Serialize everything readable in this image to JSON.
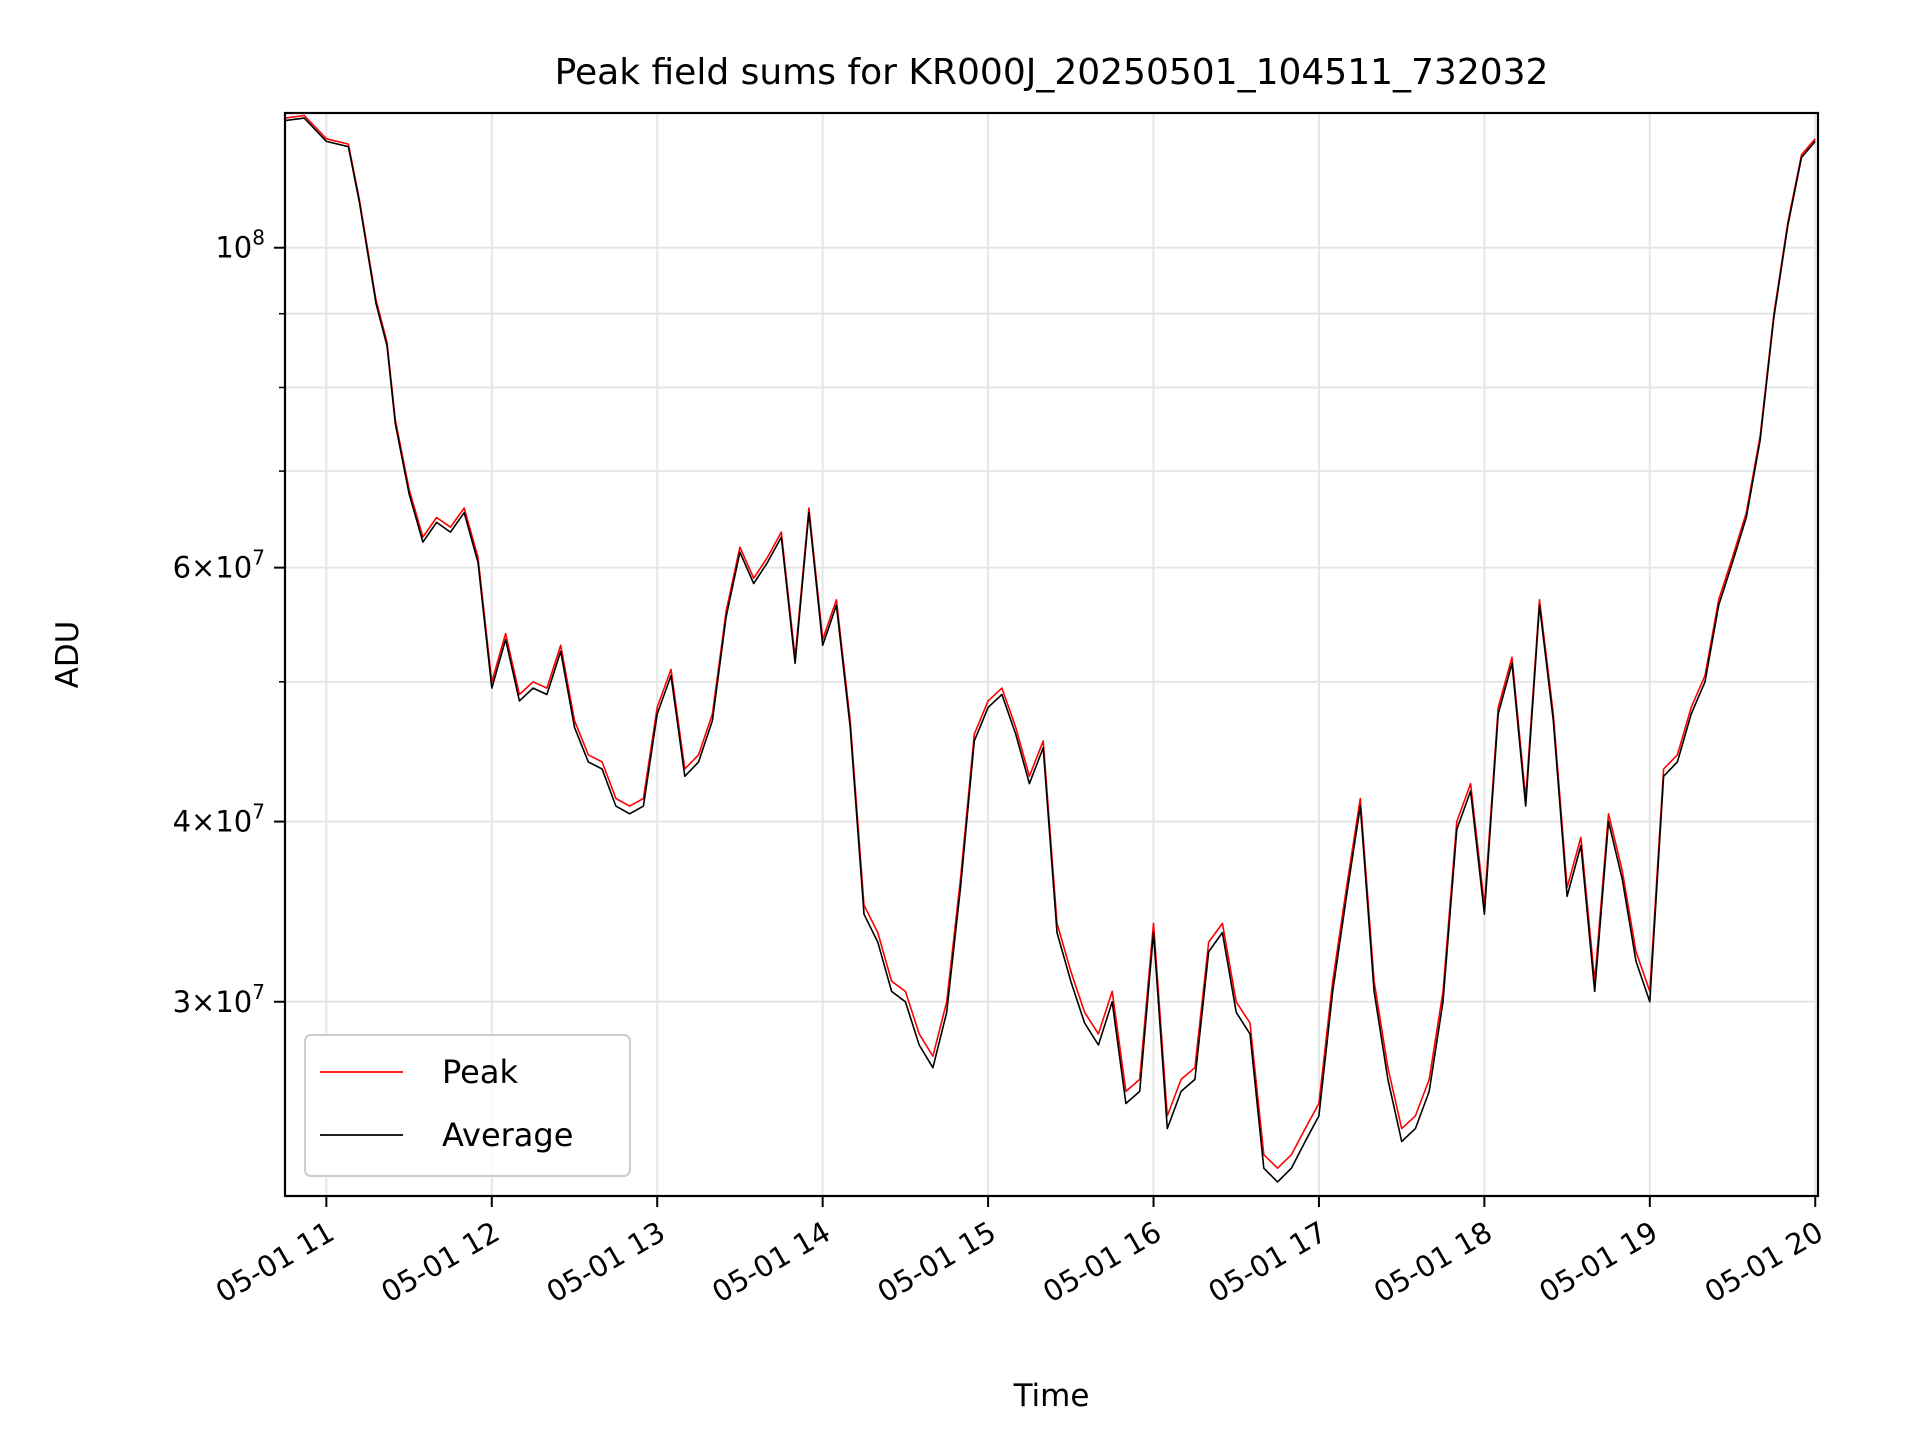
{
  "chart_data": {
    "type": "line",
    "title": "Peak field sums for KR000J_20250501_104511_732032",
    "xlabel": "Time",
    "ylabel": "ADU",
    "yscale": "log",
    "xlim": [
      "2025-05-01 10:45",
      "2025-05-01 20:01"
    ],
    "ylim": [
      22000000,
      124000000
    ],
    "grid": true,
    "legend_position": "lower-left",
    "x_ticks": [
      {
        "value": "2025-05-01 11:00",
        "label": "05-01 11"
      },
      {
        "value": "2025-05-01 12:00",
        "label": "05-01 12"
      },
      {
        "value": "2025-05-01 13:00",
        "label": "05-01 13"
      },
      {
        "value": "2025-05-01 14:00",
        "label": "05-01 14"
      },
      {
        "value": "2025-05-01 15:00",
        "label": "05-01 15"
      },
      {
        "value": "2025-05-01 16:00",
        "label": "05-01 16"
      },
      {
        "value": "2025-05-01 17:00",
        "label": "05-01 17"
      },
      {
        "value": "2025-05-01 18:00",
        "label": "05-01 18"
      },
      {
        "value": "2025-05-01 19:00",
        "label": "05-01 19"
      },
      {
        "value": "2025-05-01 20:00",
        "label": "05-01 20"
      }
    ],
    "y_ticks": [
      {
        "value": 30000000,
        "base": "3×10",
        "exp": "7"
      },
      {
        "value": 40000000,
        "base": "4×10",
        "exp": "7"
      },
      {
        "value": 60000000,
        "base": "6×10",
        "exp": "7"
      },
      {
        "value": 100000000,
        "base": "10",
        "exp": "8"
      }
    ],
    "y_minor_ticks": [
      50000000,
      70000000,
      80000000,
      90000000
    ],
    "series": [
      {
        "name": "Peak",
        "color": "#ff0000",
        "x": [
          "2025-05-01 10:45",
          "2025-05-01 10:52",
          "2025-05-01 11:00",
          "2025-05-01 11:08",
          "2025-05-01 11:12",
          "2025-05-01 11:18",
          "2025-05-01 11:22",
          "2025-05-01 11:25",
          "2025-05-01 11:30",
          "2025-05-01 11:35",
          "2025-05-01 11:40",
          "2025-05-01 11:45",
          "2025-05-01 11:50",
          "2025-05-01 11:55",
          "2025-05-01 12:00",
          "2025-05-01 12:05",
          "2025-05-01 12:10",
          "2025-05-01 12:15",
          "2025-05-01 12:20",
          "2025-05-01 12:25",
          "2025-05-01 12:30",
          "2025-05-01 12:35",
          "2025-05-01 12:40",
          "2025-05-01 12:45",
          "2025-05-01 12:50",
          "2025-05-01 12:55",
          "2025-05-01 13:00",
          "2025-05-01 13:05",
          "2025-05-01 13:10",
          "2025-05-01 13:15",
          "2025-05-01 13:20",
          "2025-05-01 13:25",
          "2025-05-01 13:30",
          "2025-05-01 13:35",
          "2025-05-01 13:40",
          "2025-05-01 13:45",
          "2025-05-01 13:50",
          "2025-05-01 13:55",
          "2025-05-01 14:00",
          "2025-05-01 14:05",
          "2025-05-01 14:10",
          "2025-05-01 14:15",
          "2025-05-01 14:20",
          "2025-05-01 14:25",
          "2025-05-01 14:30",
          "2025-05-01 14:35",
          "2025-05-01 14:40",
          "2025-05-01 14:45",
          "2025-05-01 14:50",
          "2025-05-01 14:55",
          "2025-05-01 15:00",
          "2025-05-01 15:05",
          "2025-05-01 15:10",
          "2025-05-01 15:15",
          "2025-05-01 15:20",
          "2025-05-01 15:25",
          "2025-05-01 15:30",
          "2025-05-01 15:35",
          "2025-05-01 15:40",
          "2025-05-01 15:45",
          "2025-05-01 15:50",
          "2025-05-01 15:55",
          "2025-05-01 16:00",
          "2025-05-01 16:05",
          "2025-05-01 16:10",
          "2025-05-01 16:15",
          "2025-05-01 16:20",
          "2025-05-01 16:25",
          "2025-05-01 16:30",
          "2025-05-01 16:35",
          "2025-05-01 16:40",
          "2025-05-01 16:45",
          "2025-05-01 16:50",
          "2025-05-01 16:55",
          "2025-05-01 17:00",
          "2025-05-01 17:05",
          "2025-05-01 17:10",
          "2025-05-01 17:15",
          "2025-05-01 17:20",
          "2025-05-01 17:25",
          "2025-05-01 17:30",
          "2025-05-01 17:35",
          "2025-05-01 17:40",
          "2025-05-01 17:45",
          "2025-05-01 17:50",
          "2025-05-01 17:55",
          "2025-05-01 18:00",
          "2025-05-01 18:05",
          "2025-05-01 18:10",
          "2025-05-01 18:15",
          "2025-05-01 18:20",
          "2025-05-01 18:25",
          "2025-05-01 18:30",
          "2025-05-01 18:35",
          "2025-05-01 18:40",
          "2025-05-01 18:45",
          "2025-05-01 18:50",
          "2025-05-01 18:55",
          "2025-05-01 19:00",
          "2025-05-01 19:05",
          "2025-05-01 19:10",
          "2025-05-01 19:15",
          "2025-05-01 19:20",
          "2025-05-01 19:25",
          "2025-05-01 19:30",
          "2025-05-01 19:35",
          "2025-05-01 19:40",
          "2025-05-01 19:45",
          "2025-05-01 19:50",
          "2025-05-01 19:55",
          "2025-05-01 20:00"
        ],
        "values": [
          123000000,
          123500000,
          119000000,
          118000000,
          108000000,
          92000000,
          86000000,
          76000000,
          68000000,
          63000000,
          65000000,
          64000000,
          66000000,
          61000000,
          50000000,
          54000000,
          49000000,
          50000000,
          49500000,
          53000000,
          47000000,
          44500000,
          44000000,
          41500000,
          41000000,
          41500000,
          48000000,
          51000000,
          43500000,
          44500000,
          47500000,
          56000000,
          62000000,
          59000000,
          61000000,
          63500000,
          52000000,
          66000000,
          53500000,
          57000000,
          47000000,
          35000000,
          33500000,
          31000000,
          30500000,
          28500000,
          27500000,
          30000000,
          36500000,
          46000000,
          48500000,
          49500000,
          46500000,
          43000000,
          45500000,
          34000000,
          31500000,
          29500000,
          28500000,
          30500000,
          26000000,
          26500000,
          34000000,
          25000000,
          26500000,
          27000000,
          33000000,
          34000000,
          30000000,
          29000000,
          23500000,
          23000000,
          23500000,
          24500000,
          25500000,
          31000000,
          36000000,
          41500000,
          31000000,
          27000000,
          24500000,
          25000000,
          26500000,
          30500000,
          40000000,
          42500000,
          35000000,
          48000000,
          52000000,
          41500000,
          57000000,
          47500000,
          36000000,
          39000000,
          31000000,
          40500000,
          37000000,
          32500000,
          30500000,
          43500000,
          44500000,
          48000000,
          50500000,
          57000000,
          61000000,
          65500000,
          74000000,
          90000000,
          104000000,
          116000000,
          119000000
        ]
      },
      {
        "name": "Average",
        "color": "#000000",
        "x": [
          "2025-05-01 10:45",
          "2025-05-01 10:52",
          "2025-05-01 11:00",
          "2025-05-01 11:08",
          "2025-05-01 11:12",
          "2025-05-01 11:18",
          "2025-05-01 11:22",
          "2025-05-01 11:25",
          "2025-05-01 11:30",
          "2025-05-01 11:35",
          "2025-05-01 11:40",
          "2025-05-01 11:45",
          "2025-05-01 11:50",
          "2025-05-01 11:55",
          "2025-05-01 12:00",
          "2025-05-01 12:05",
          "2025-05-01 12:10",
          "2025-05-01 12:15",
          "2025-05-01 12:20",
          "2025-05-01 12:25",
          "2025-05-01 12:30",
          "2025-05-01 12:35",
          "2025-05-01 12:40",
          "2025-05-01 12:45",
          "2025-05-01 12:50",
          "2025-05-01 12:55",
          "2025-05-01 13:00",
          "2025-05-01 13:05",
          "2025-05-01 13:10",
          "2025-05-01 13:15",
          "2025-05-01 13:20",
          "2025-05-01 13:25",
          "2025-05-01 13:30",
          "2025-05-01 13:35",
          "2025-05-01 13:40",
          "2025-05-01 13:45",
          "2025-05-01 13:50",
          "2025-05-01 13:55",
          "2025-05-01 14:00",
          "2025-05-01 14:05",
          "2025-05-01 14:10",
          "2025-05-01 14:15",
          "2025-05-01 14:20",
          "2025-05-01 14:25",
          "2025-05-01 14:30",
          "2025-05-01 14:35",
          "2025-05-01 14:40",
          "2025-05-01 14:45",
          "2025-05-01 14:50",
          "2025-05-01 14:55",
          "2025-05-01 15:00",
          "2025-05-01 15:05",
          "2025-05-01 15:10",
          "2025-05-01 15:15",
          "2025-05-01 15:20",
          "2025-05-01 15:25",
          "2025-05-01 15:30",
          "2025-05-01 15:35",
          "2025-05-01 15:40",
          "2025-05-01 15:45",
          "2025-05-01 15:50",
          "2025-05-01 15:55",
          "2025-05-01 16:00",
          "2025-05-01 16:05",
          "2025-05-01 16:10",
          "2025-05-01 16:15",
          "2025-05-01 16:20",
          "2025-05-01 16:25",
          "2025-05-01 16:30",
          "2025-05-01 16:35",
          "2025-05-01 16:40",
          "2025-05-01 16:45",
          "2025-05-01 16:50",
          "2025-05-01 16:55",
          "2025-05-01 17:00",
          "2025-05-01 17:05",
          "2025-05-01 17:10",
          "2025-05-01 17:15",
          "2025-05-01 17:20",
          "2025-05-01 17:25",
          "2025-05-01 17:30",
          "2025-05-01 17:35",
          "2025-05-01 17:40",
          "2025-05-01 17:45",
          "2025-05-01 17:50",
          "2025-05-01 17:55",
          "2025-05-01 18:00",
          "2025-05-01 18:05",
          "2025-05-01 18:10",
          "2025-05-01 18:15",
          "2025-05-01 18:20",
          "2025-05-01 18:25",
          "2025-05-01 18:30",
          "2025-05-01 18:35",
          "2025-05-01 18:40",
          "2025-05-01 18:45",
          "2025-05-01 18:50",
          "2025-05-01 18:55",
          "2025-05-01 19:00",
          "2025-05-01 19:05",
          "2025-05-01 19:10",
          "2025-05-01 19:15",
          "2025-05-01 19:20",
          "2025-05-01 19:25",
          "2025-05-01 19:30",
          "2025-05-01 19:35",
          "2025-05-01 19:40",
          "2025-05-01 19:45",
          "2025-05-01 19:50",
          "2025-05-01 19:55",
          "2025-05-01 20:00"
        ],
        "values": [
          122500000,
          123000000,
          118500000,
          117500000,
          107500000,
          91500000,
          85500000,
          75500000,
          67500000,
          62500000,
          64500000,
          63500000,
          65500000,
          60500000,
          49500000,
          53500000,
          48500000,
          49500000,
          49000000,
          52500000,
          46500000,
          44000000,
          43500000,
          41000000,
          40500000,
          41000000,
          47500000,
          50500000,
          43000000,
          44000000,
          47000000,
          55500000,
          61500000,
          58500000,
          60500000,
          63000000,
          51500000,
          65500000,
          53000000,
          56500000,
          46500000,
          34500000,
          33000000,
          30500000,
          30000000,
          28000000,
          27000000,
          29500000,
          36000000,
          45500000,
          48000000,
          49000000,
          46000000,
          42500000,
          45000000,
          33500000,
          31000000,
          29000000,
          28000000,
          30000000,
          25500000,
          26000000,
          33500000,
          24500000,
          26000000,
          26500000,
          32500000,
          33500000,
          29500000,
          28500000,
          23000000,
          22500000,
          23000000,
          24000000,
          25000000,
          30500000,
          35500000,
          41000000,
          30500000,
          26500000,
          24000000,
          24500000,
          26000000,
          30000000,
          39500000,
          42000000,
          34500000,
          47500000,
          51500000,
          41000000,
          56500000,
          47000000,
          35500000,
          38500000,
          30500000,
          40000000,
          36500000,
          32000000,
          30000000,
          43000000,
          44000000,
          47500000,
          50000000,
          56500000,
          60500000,
          65000000,
          73500000,
          89500000,
          103500000,
          115500000,
          118500000
        ]
      }
    ]
  }
}
